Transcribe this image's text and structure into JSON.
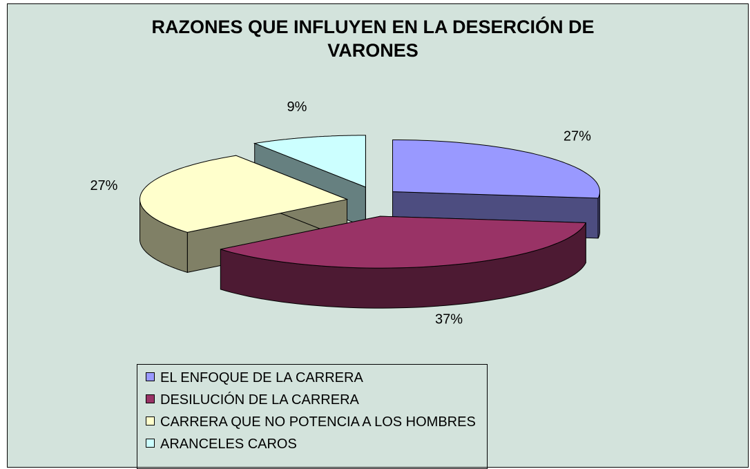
{
  "chart_data": {
    "type": "pie3d",
    "title": "RAZONES QUE INFLUYEN EN LA DESERCIÓN DE VARONES",
    "categories": [
      "EL ENFOQUE DE LA CARRERA",
      "DESILUCIÓN DE LA CARRERA",
      "CARRERA QUE NO POTENCIA A LOS HOMBRES",
      "ARANCELES CAROS"
    ],
    "values": [
      27,
      37,
      27,
      9
    ],
    "value_labels": [
      "27%",
      "37%",
      "27%",
      "9%"
    ],
    "colors": [
      "#9999ff",
      "#993366",
      "#ffffcc",
      "#ccffff"
    ]
  }
}
